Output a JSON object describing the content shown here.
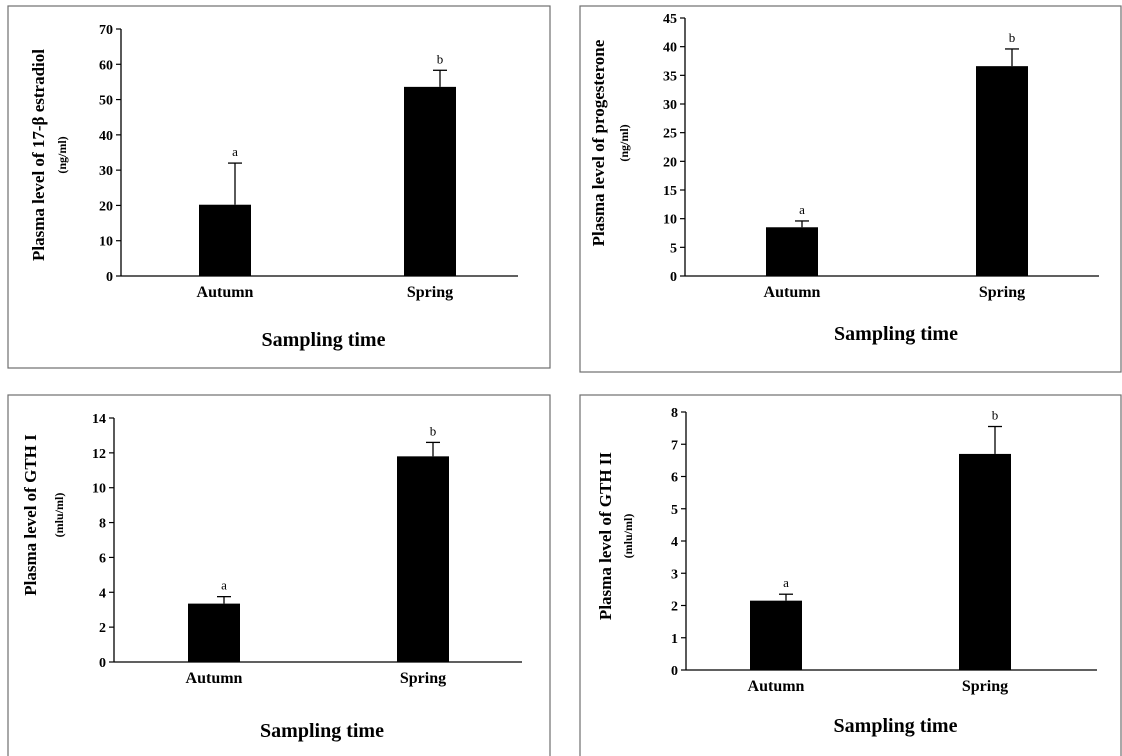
{
  "colors": {
    "bar": "#000000",
    "frame": "#6f6f6f",
    "background": "#ffffff"
  },
  "chart_data": [
    {
      "type": "bar",
      "categories": [
        "Autumn",
        "Spring"
      ],
      "values": [
        20.2,
        53.6
      ],
      "errors": [
        11.8,
        4.7
      ],
      "significance": [
        "a",
        "b"
      ],
      "xlabel": "Sampling time",
      "ylabel": "Plasma level of 17-β estradiol",
      "yunit": "(ng/ml)",
      "ylim": [
        0,
        70
      ],
      "yticks": [
        0,
        10,
        20,
        30,
        40,
        50,
        60,
        70
      ],
      "grid": false
    },
    {
      "type": "bar",
      "categories": [
        "Autumn",
        "Spring"
      ],
      "values": [
        8.5,
        36.6
      ],
      "errors": [
        1.1,
        3.0
      ],
      "significance": [
        "a",
        "b"
      ],
      "xlabel": "Sampling time",
      "ylabel": "Plasma level of progesterone",
      "yunit": "(ng/ml)",
      "ylim": [
        0,
        45
      ],
      "yticks": [
        0,
        5,
        10,
        15,
        20,
        25,
        30,
        35,
        40,
        45
      ],
      "grid": false
    },
    {
      "type": "bar",
      "categories": [
        "Autumn",
        "Spring"
      ],
      "values": [
        3.35,
        11.8
      ],
      "errors": [
        0.4,
        0.8
      ],
      "significance": [
        "a",
        "b"
      ],
      "xlabel": "Sampling time",
      "ylabel": "Plasma level of GTH I",
      "yunit": "(mlu/ml)",
      "ylim": [
        0,
        14
      ],
      "yticks": [
        0,
        2,
        4,
        6,
        8,
        10,
        12,
        14
      ],
      "grid": false
    },
    {
      "type": "bar",
      "categories": [
        "Autumn",
        "Spring"
      ],
      "values": [
        2.15,
        6.7
      ],
      "errors": [
        0.2,
        0.85
      ],
      "significance": [
        "a",
        "b"
      ],
      "xlabel": "Sampling time",
      "ylabel": "Plasma level of GTH II",
      "yunit": "(mlu/ml)",
      "ylim": [
        0,
        8
      ],
      "yticks": [
        0,
        1,
        2,
        3,
        4,
        5,
        6,
        7,
        8
      ],
      "grid": false
    }
  ]
}
